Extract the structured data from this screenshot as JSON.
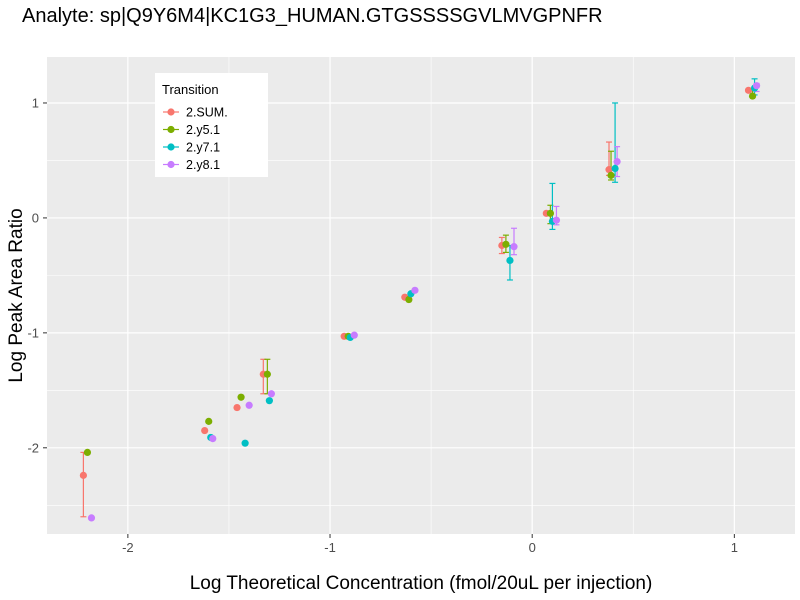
{
  "chart_data": {
    "type": "scatter",
    "title": "Analyte: sp|Q9Y6M4|KC1G3_HUMAN.GTGSSSSGVLMVGPNFR",
    "xlabel": "Log Theoretical Concentration (fmol/20uL per injection)",
    "ylabel": "Log Peak Area Ratio",
    "xlim": [
      -2.4,
      1.3
    ],
    "ylim": [
      -2.75,
      1.4
    ],
    "x_ticks": [
      -2,
      -1,
      0,
      1
    ],
    "x_tick_labels": [
      "-2",
      "-1",
      "0",
      "1"
    ],
    "y_ticks": [
      -2,
      -1,
      0,
      1
    ],
    "y_tick_labels": [
      "-2",
      "-1",
      "0",
      "1"
    ],
    "grid": true,
    "legend": {
      "title": "Transition",
      "placement": "top-left"
    },
    "series": [
      {
        "name": "2.SUM.",
        "color": "#F8766D",
        "points": [
          {
            "x": -2.22,
            "y": -2.24,
            "err_low": -2.6,
            "err_high": -2.04
          },
          {
            "x": -1.62,
            "y": -1.85
          },
          {
            "x": -1.46,
            "y": -1.65
          },
          {
            "x": -1.33,
            "y": -1.36,
            "err_low": -1.53,
            "err_high": -1.23
          },
          {
            "x": -0.93,
            "y": -1.03
          },
          {
            "x": -0.63,
            "y": -0.69
          },
          {
            "x": -0.15,
            "y": -0.24,
            "err_low": -0.31,
            "err_high": -0.17
          },
          {
            "x": 0.07,
            "y": 0.04
          },
          {
            "x": 0.38,
            "y": 0.42,
            "err_low": 0.37,
            "err_high": 0.66
          },
          {
            "x": 1.07,
            "y": 1.11
          }
        ]
      },
      {
        "name": "2.y5.1",
        "color": "#7CAE00",
        "points": [
          {
            "x": -2.2,
            "y": -2.04
          },
          {
            "x": -1.6,
            "y": -1.77
          },
          {
            "x": -1.44,
            "y": -1.56
          },
          {
            "x": -1.31,
            "y": -1.36,
            "err_low": -1.53,
            "err_high": -1.23
          },
          {
            "x": -0.91,
            "y": -1.03
          },
          {
            "x": -0.61,
            "y": -0.71
          },
          {
            "x": -0.13,
            "y": -0.23,
            "err_low": -0.3,
            "err_high": -0.15
          },
          {
            "x": 0.09,
            "y": 0.04,
            "err_low": -0.05,
            "err_high": 0.11
          },
          {
            "x": 0.39,
            "y": 0.37,
            "err_low": 0.33,
            "err_high": 0.58
          },
          {
            "x": 1.09,
            "y": 1.06,
            "err_low": 1.05,
            "err_high": 1.12
          }
        ]
      },
      {
        "name": "2.y7.1",
        "color": "#00BFC4",
        "points": [
          {
            "x": -1.59,
            "y": -1.91
          },
          {
            "x": -1.42,
            "y": -1.96
          },
          {
            "x": -1.3,
            "y": -1.59
          },
          {
            "x": -0.9,
            "y": -1.04
          },
          {
            "x": -0.6,
            "y": -0.66
          },
          {
            "x": -0.11,
            "y": -0.37,
            "err_low": -0.54,
            "err_high": -0.24
          },
          {
            "x": 0.1,
            "y": -0.03,
            "err_low": -0.1,
            "err_high": 0.3
          },
          {
            "x": 0.41,
            "y": 0.43,
            "err_low": 0.31,
            "err_high": 1.0
          },
          {
            "x": 1.1,
            "y": 1.13,
            "err_low": 1.07,
            "err_high": 1.21
          }
        ]
      },
      {
        "name": "2.y8.1",
        "color": "#C77CFF",
        "points": [
          {
            "x": -2.18,
            "y": -2.61
          },
          {
            "x": -1.58,
            "y": -1.92
          },
          {
            "x": -1.4,
            "y": -1.63
          },
          {
            "x": -1.29,
            "y": -1.53
          },
          {
            "x": -0.88,
            "y": -1.02
          },
          {
            "x": -0.58,
            "y": -0.63
          },
          {
            "x": -0.09,
            "y": -0.25,
            "err_low": -0.32,
            "err_high": -0.09
          },
          {
            "x": 0.12,
            "y": -0.02,
            "err_low": -0.06,
            "err_high": 0.1
          },
          {
            "x": 0.42,
            "y": 0.49,
            "err_low": 0.36,
            "err_high": 0.62
          },
          {
            "x": 1.11,
            "y": 1.15,
            "err_low": 1.1,
            "err_high": 1.17
          }
        ]
      }
    ]
  }
}
